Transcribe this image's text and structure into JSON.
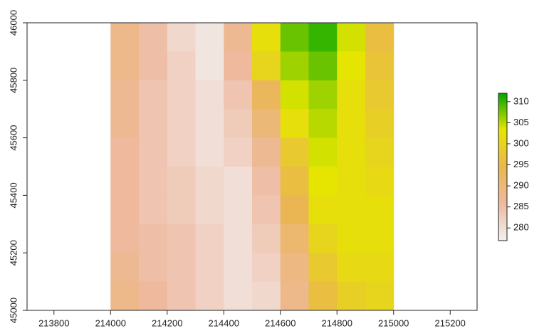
{
  "chart_data": {
    "type": "raster",
    "x": [
      214050,
      214150,
      214250,
      214350,
      214450,
      214550,
      214650,
      214750,
      214850,
      214950
    ],
    "y": [
      45950,
      45850,
      45750,
      45650,
      45550,
      45450,
      45350,
      45250,
      45150,
      45050
    ],
    "z": [
      [
        288,
        285,
        281,
        279,
        287,
        302,
        308,
        310,
        304,
        296
      ],
      [
        288,
        285,
        282,
        279,
        286,
        300,
        306,
        308,
        303,
        297
      ],
      [
        287,
        284,
        282,
        280,
        284,
        293,
        304,
        306,
        302,
        298
      ],
      [
        287,
        284,
        282,
        280,
        283,
        290,
        302,
        305,
        302,
        299
      ],
      [
        286,
        284,
        282,
        280,
        282,
        287,
        298,
        304,
        302,
        300
      ],
      [
        286,
        284,
        283,
        281,
        280,
        285,
        296,
        303,
        302,
        301
      ],
      [
        286,
        284,
        283,
        281,
        280,
        284,
        294,
        302,
        302,
        302
      ],
      [
        286,
        285,
        284,
        282,
        280,
        283,
        291,
        300,
        302,
        302
      ],
      [
        287,
        285,
        284,
        282,
        280,
        282,
        289,
        298,
        301,
        301
      ],
      [
        288,
        286,
        284,
        282,
        280,
        281,
        288,
        296,
        299,
        300
      ]
    ],
    "xlim": [
      213705,
      215295
    ],
    "xticks": [
      213800,
      214000,
      214200,
      214400,
      214600,
      214800,
      215000,
      215200
    ],
    "ylim": [
      45000,
      46000
    ],
    "yticks": [
      45000,
      45200,
      45400,
      45600,
      45800,
      46000
    ],
    "zlim": [
      277,
      312
    ],
    "zticks": [
      280,
      285,
      290,
      295,
      300,
      305,
      310
    ],
    "colors": [
      "#F2F2F2",
      "#EEB99F",
      "#EAB64E",
      "#E6E600",
      "#00A600"
    ]
  }
}
